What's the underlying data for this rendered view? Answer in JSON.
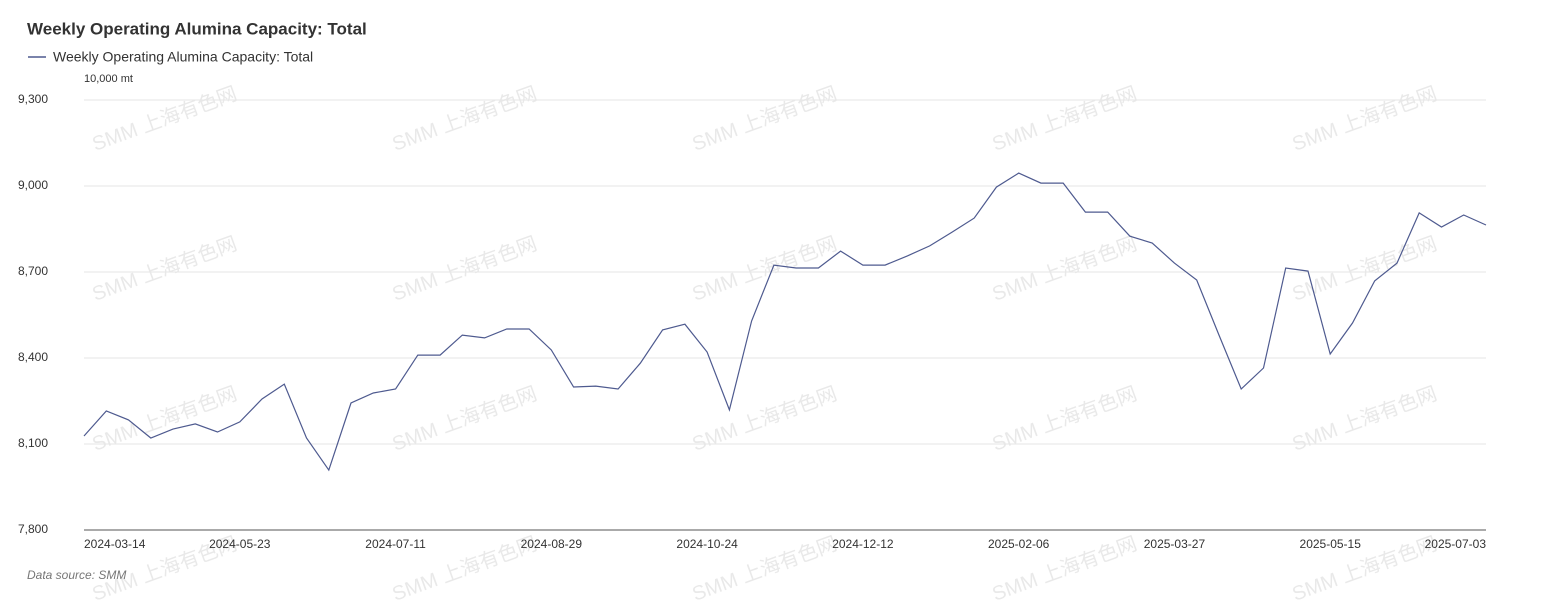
{
  "chart_data": {
    "type": "line",
    "title": "Weekly Operating Alumina Capacity: Total",
    "unit_label": "10,000 mt",
    "source": "Data source:  SMM",
    "watermark": "SMM 上海有色网",
    "categories": [
      "2024-03-14",
      null,
      null,
      null,
      null,
      null,
      null,
      "2024-05-23",
      null,
      null,
      null,
      null,
      null,
      null,
      "2024-07-11",
      null,
      null,
      null,
      null,
      null,
      null,
      "2024-08-29",
      null,
      null,
      null,
      null,
      null,
      null,
      "2024-10-24",
      null,
      null,
      null,
      null,
      null,
      null,
      "2024-12-12",
      null,
      null,
      null,
      null,
      null,
      null,
      "2025-02-06",
      null,
      null,
      null,
      null,
      null,
      null,
      "2025-03-27",
      null,
      null,
      null,
      null,
      null,
      null,
      "2025-05-15",
      null,
      null,
      null,
      null,
      null,
      null,
      "2025-07-03"
    ],
    "series": [
      {
        "name": "Weekly Operating Alumina Capacity: Total",
        "color": "#4e5a8f",
        "values": [
          8128,
          8215,
          8184,
          8121,
          8152,
          8170,
          8142,
          8177,
          8257,
          8309,
          8121,
          8009,
          8243,
          8278,
          8292,
          8410,
          8410,
          8480,
          8470,
          8501,
          8501,
          8428,
          8299,
          8302,
          8292,
          8382,
          8498,
          8518,
          8421,
          8219,
          8529,
          8724,
          8714,
          8714,
          8773,
          8724,
          8724,
          8756,
          8791,
          8839,
          8888,
          8996,
          9045,
          9010,
          9010,
          8909,
          8909,
          8825,
          8801,
          8731,
          8672,
          8480,
          8292,
          8365,
          8714,
          8703,
          8414,
          8522,
          8669,
          8731,
          8906,
          8857,
          8899,
          8864
        ]
      }
    ],
    "ylim": [
      7800,
      9300
    ],
    "yticks": [
      {
        "value": 7800,
        "label": "7,800"
      },
      {
        "value": 8100,
        "label": "8,100"
      },
      {
        "value": 8400,
        "label": "8,400"
      },
      {
        "value": 8700,
        "label": "8,700"
      },
      {
        "value": 9000,
        "label": "9,000"
      },
      {
        "value": 9300,
        "label": "9,300"
      }
    ],
    "grid": true
  }
}
